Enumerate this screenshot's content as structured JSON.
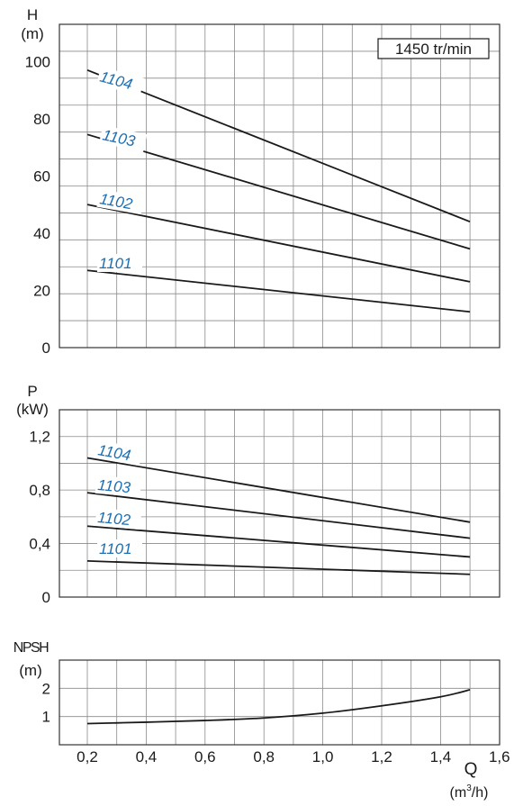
{
  "colors": {
    "curve": "#1a1a1a",
    "grid": "#8a8a8a",
    "frame": "#333333",
    "label": "#1a6fb5",
    "text": "#1a1a1a"
  },
  "x_axis": {
    "symbol": "Q",
    "unit_prefix": "(m",
    "unit_sup": "3",
    "unit_suffix": "/h)",
    "tick_labels": [
      "0,2",
      "0,4",
      "0,6",
      "0,8",
      "1,0",
      "1,2",
      "1,4",
      "1,6"
    ]
  },
  "speed_box": "1450 tr/min",
  "chart_data": [
    {
      "type": "line",
      "name": "head",
      "ylabel": "H",
      "yunit": "(m)",
      "xlim": [
        0.2,
        1.6
      ],
      "ylim": [
        0,
        113
      ],
      "yticks": [
        0,
        20,
        40,
        60,
        80,
        100
      ],
      "ytick_labels": [
        "0",
        "20",
        "40",
        "60",
        "80",
        "100"
      ],
      "grid": true,
      "series": [
        {
          "name": "1101",
          "x": [
            0.2,
            1.5
          ],
          "y": [
            27,
            12.5
          ]
        },
        {
          "name": "1102",
          "x": [
            0.2,
            1.5
          ],
          "y": [
            50,
            23
          ]
        },
        {
          "name": "1103",
          "x": [
            0.2,
            1.5
          ],
          "y": [
            74.5,
            34.5
          ]
        },
        {
          "name": "1104",
          "x": [
            0.2,
            1.5
          ],
          "y": [
            97,
            44
          ]
        }
      ]
    },
    {
      "type": "line",
      "name": "power",
      "ylabel": "P",
      "yunit": "(kW)",
      "xlim": [
        0.2,
        1.6
      ],
      "ylim": [
        0,
        1.4
      ],
      "yticks": [
        0,
        0.4,
        0.8,
        1.2
      ],
      "ytick_labels": [
        "0",
        "0,4",
        "0,8",
        "1,2"
      ],
      "grid": true,
      "series": [
        {
          "name": "1101",
          "x": [
            0.2,
            1.5
          ],
          "y": [
            0.27,
            0.17
          ]
        },
        {
          "name": "1102",
          "x": [
            0.2,
            1.5
          ],
          "y": [
            0.53,
            0.3
          ]
        },
        {
          "name": "1103",
          "x": [
            0.2,
            1.5
          ],
          "y": [
            0.78,
            0.44
          ]
        },
        {
          "name": "1104",
          "x": [
            0.2,
            1.5
          ],
          "y": [
            1.04,
            0.56
          ]
        }
      ]
    },
    {
      "type": "line",
      "name": "npsh",
      "ylabel": "NPSH",
      "yunit": "(m)",
      "xlim": [
        0.2,
        1.6
      ],
      "ylim": [
        0,
        3
      ],
      "yticks": [
        1,
        2
      ],
      "ytick_labels": [
        "1",
        "2"
      ],
      "grid": true,
      "series": [
        {
          "name": "NPSH",
          "x": [
            0.2,
            0.4,
            0.6,
            0.8,
            1.0,
            1.2,
            1.4,
            1.5
          ],
          "y": [
            0.75,
            0.8,
            0.86,
            0.95,
            1.12,
            1.38,
            1.7,
            1.95
          ]
        }
      ]
    }
  ]
}
